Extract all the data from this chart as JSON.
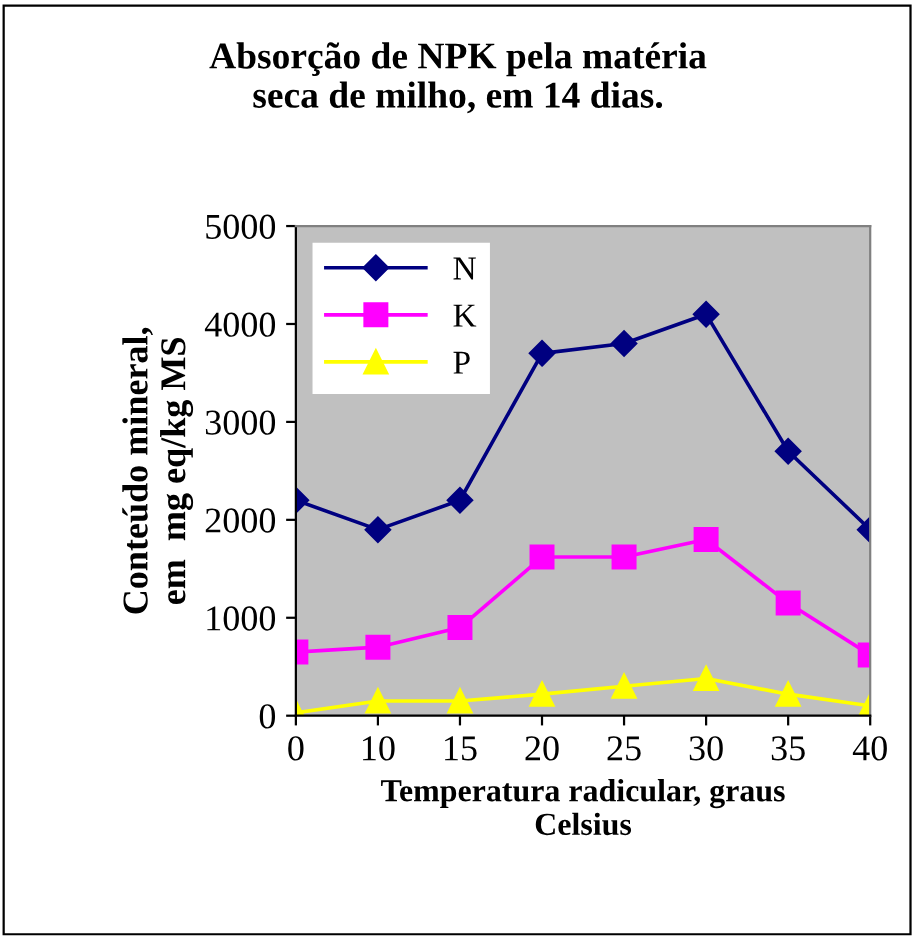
{
  "chart_data": {
    "type": "line",
    "title": "Absorção de NPK pela matéria\nseca de milho, em 14 dias.",
    "xlabel": "Temperatura radicular, graus\nCelsius",
    "ylabel": "Conteúdo mineral,\nem  mg eq/kg MS",
    "categories": [
      "0",
      "10",
      "15",
      "20",
      "25",
      "30",
      "35",
      "40"
    ],
    "series": [
      {
        "name": "N",
        "color": "#000080",
        "marker": "diamond",
        "values": [
          2200,
          1900,
          2200,
          3700,
          3800,
          4100,
          2700,
          1900
        ]
      },
      {
        "name": "K",
        "color": "#ff00ff",
        "marker": "square",
        "values": [
          650,
          700,
          900,
          1620,
          1620,
          1800,
          1150,
          620
        ]
      },
      {
        "name": "P",
        "color": "#ffff00",
        "marker": "triangle",
        "values": [
          30,
          150,
          150,
          220,
          300,
          380,
          220,
          100
        ]
      }
    ],
    "ylim": [
      0,
      5000
    ],
    "yticks": [
      0,
      1000,
      2000,
      3000,
      4000,
      5000
    ],
    "grid": false,
    "legend": "top left"
  }
}
